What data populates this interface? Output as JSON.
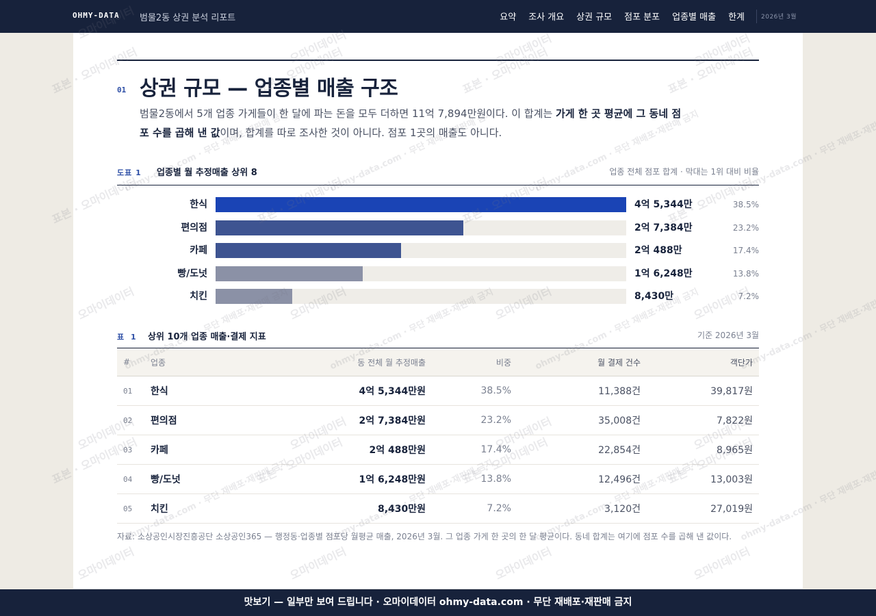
{
  "header": {
    "brand": "OHMY-DATA",
    "report_title": "범물2동 상권 분석 리포트",
    "nav": [
      "요약",
      "조사 개요",
      "상권 규모",
      "점포 분포",
      "업종별 매출",
      "한계"
    ],
    "date": "2026년 3월"
  },
  "section": {
    "number": "01",
    "title": "상권 규모 — 업종별 매출 구조",
    "desc_1": "범물2동에서 5개 업종 가게들이 한 달에 파는 돈을 모두 더하면 11억 7,894만원이다. 이 합계는 ",
    "desc_bold": "가게 한 곳 평균에 그 동네 점포 수를 곱해 낸 값",
    "desc_2": "이며, 합계를 따로 조사한 것이 아니다. 점포 1곳의 매출도 아니다."
  },
  "figure": {
    "tag": "도표 1",
    "title": "업종별 월 추정매출 상위 8",
    "note": "업종 전체 점포 합계 · 막대는 1위 대비 비율"
  },
  "chart_data": {
    "type": "bar",
    "orientation": "horizontal",
    "categories": [
      "한식",
      "편의점",
      "카페",
      "빵/도넛",
      "치킨"
    ],
    "values": [
      45344,
      27384,
      20488,
      16248,
      8430
    ],
    "value_unit": "만원",
    "value_labels": [
      "4억 5,344만",
      "2억 7,384만",
      "2억 488만",
      "1억 6,248만",
      "8,430만"
    ],
    "share_labels": [
      "38.5%",
      "23.2%",
      "17.4%",
      "13.8%",
      "7.2%"
    ],
    "colors": [
      "#1a44b5",
      "#3e5491",
      "#3e5491",
      "#8b91a6",
      "#8b91a6"
    ],
    "track_color": "#efede8"
  },
  "table": {
    "tag": "표 1",
    "title": "상위 10개 업종 매출·결제 지표",
    "note": "기준 2026년 3월",
    "columns": [
      "#",
      "업종",
      "동 전체 월 추정매출",
      "비중",
      "월 결제 건수",
      "객단가"
    ],
    "rows": [
      [
        "01",
        "한식",
        "4억 5,344만원",
        "38.5%",
        "11,388건",
        "39,817원"
      ],
      [
        "02",
        "편의점",
        "2억 7,384만원",
        "23.2%",
        "35,008건",
        "7,822원"
      ],
      [
        "03",
        "카페",
        "2억 488만원",
        "17.4%",
        "22,854건",
        "8,965원"
      ],
      [
        "04",
        "빵/도넛",
        "1억 6,248만원",
        "13.8%",
        "12,496건",
        "13,003원"
      ],
      [
        "05",
        "치킨",
        "8,430만원",
        "7.2%",
        "3,120건",
        "27,019원"
      ]
    ],
    "source": "자료: 소상공인시장진흥공단 소상공인365 — 행정동·업종별 점포당 월평균 매출, 2026년 3월. 그 업종 가게 한 곳의 한 달 평균이다. 동네 합계는 여기에 점포 수를 곱해 낸 값이다."
  },
  "footer": {
    "text": "맛보기 — 일부만 보여 드립니다 · 오마이데이터 ohmy-data.com · 무단 재배포·재판매 금지"
  },
  "watermark": {
    "texts": [
      "표본 · 오마이데이터",
      "ohmy-data.com · 무단 재배포·재판매 금지",
      "오마이데이터"
    ]
  }
}
